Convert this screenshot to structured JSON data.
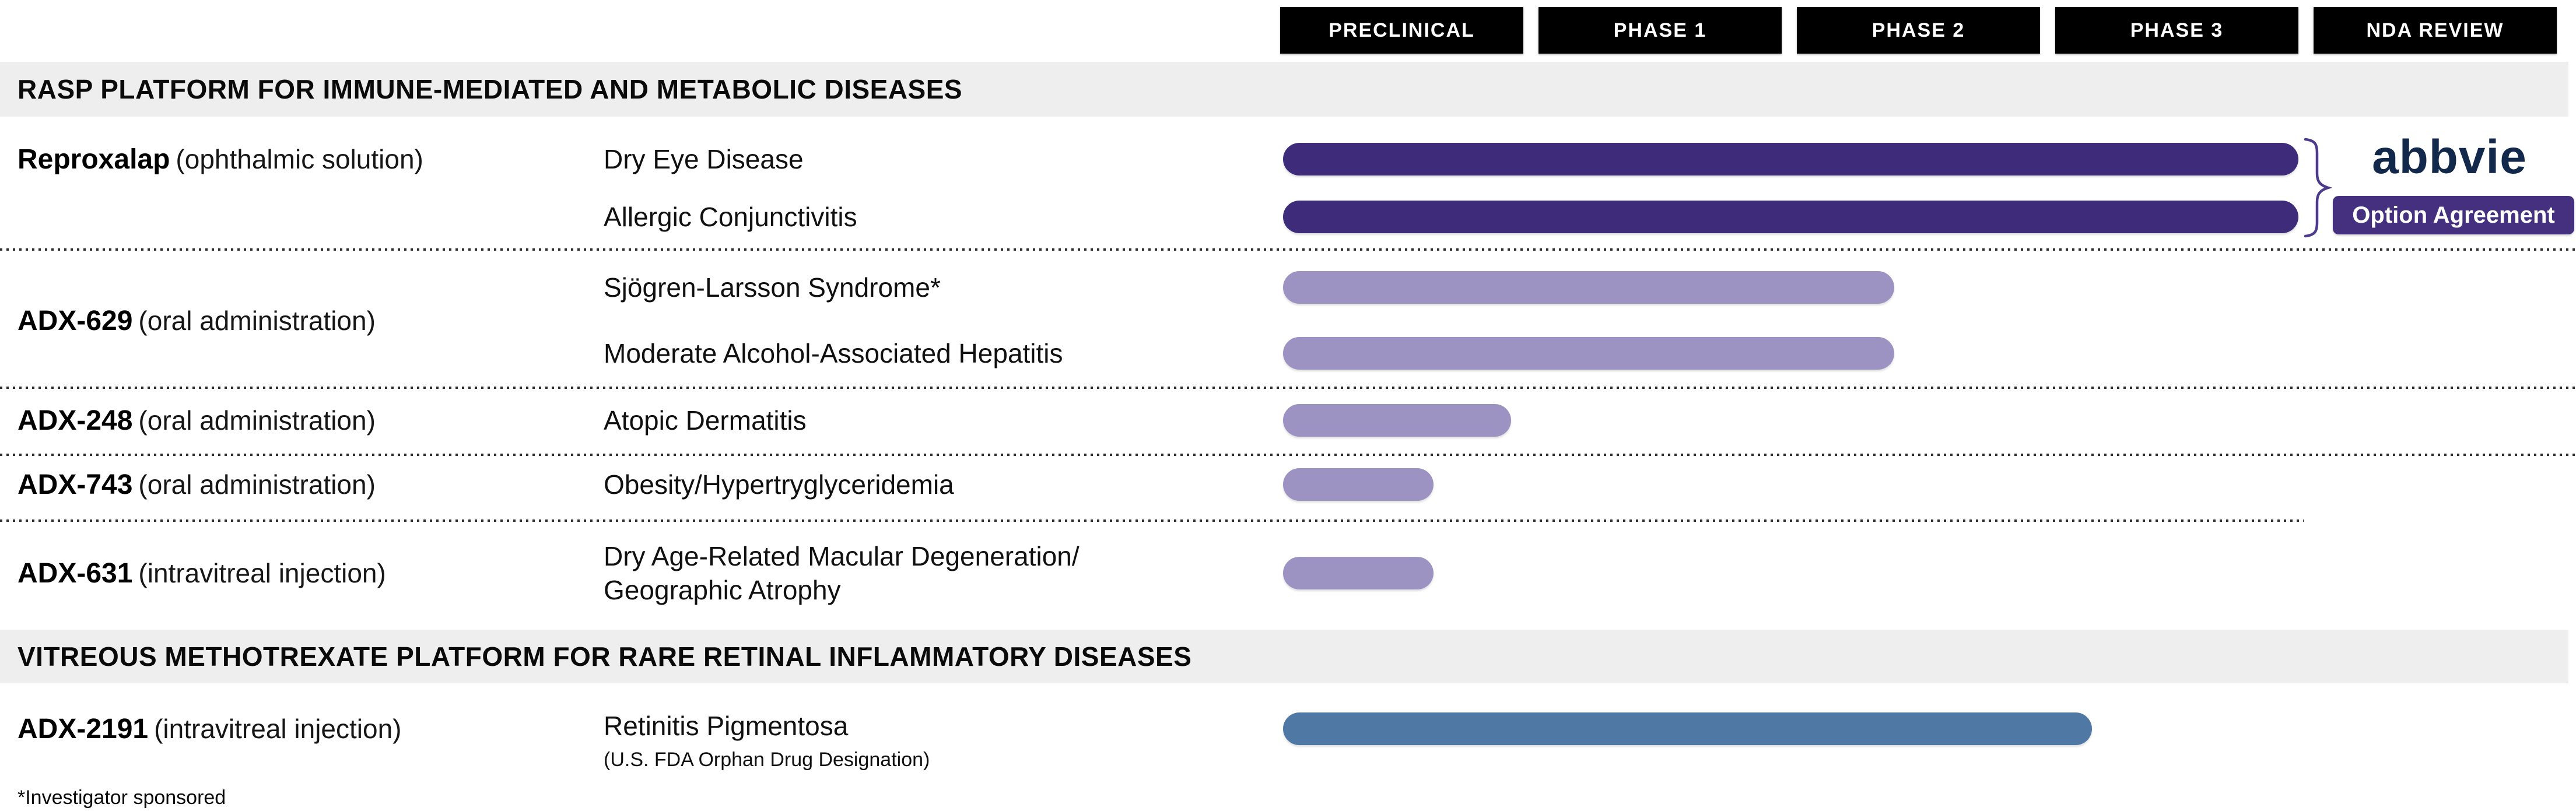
{
  "header": {
    "phases": [
      "PRECLINICAL",
      "PHASE 1",
      "PHASE 2",
      "PHASE 3",
      "NDA REVIEW"
    ]
  },
  "sections": {
    "rasp": {
      "title": "RASP PLATFORM FOR IMMUNE-MEDIATED AND METABOLIC DISEASES"
    },
    "vitreous": {
      "title": "VITREOUS METHOTREXATE PLATFORM FOR RARE RETINAL INFLAMMATORY DISEASES"
    }
  },
  "programs": {
    "reproxalap": {
      "name": "Reproxalap",
      "route": "(ophthalmic solution)"
    },
    "adx629": {
      "name": "ADX-629",
      "route": "(oral administration)"
    },
    "adx248": {
      "name": "ADX-248",
      "route": "(oral administration)"
    },
    "adx743": {
      "name": "ADX-743",
      "route": "(oral administration)"
    },
    "adx631": {
      "name": "ADX-631",
      "route": "(intravitreal injection)"
    },
    "adx2191": {
      "name": "ADX-2191",
      "route": "(intravitreal injection)"
    }
  },
  "rows": {
    "dry_eye": {
      "indication": "Dry Eye Disease"
    },
    "allergic": {
      "indication": "Allergic Conjunctivitis"
    },
    "sjogren": {
      "indication": "Sjögren-Larsson Syndrome*"
    },
    "hepatitis": {
      "indication": "Moderate Alcohol-Associated Hepatitis"
    },
    "atopic": {
      "indication": "Atopic Dermatitis"
    },
    "obesity": {
      "indication": "Obesity/Hypertryglyceridemia"
    },
    "amd": {
      "indication": "Dry Age-Related Macular Degeneration/\nGeographic Atrophy"
    },
    "retinitis": {
      "indication": "Retinitis Pigmentosa",
      "designation": "(U.S. FDA Orphan Drug Designation)"
    }
  },
  "partner": {
    "logo_text": "abbvie",
    "logo_color": "#12294B",
    "badge_label": "Option Agreement",
    "badge_color": "#45307F"
  },
  "footnote": "*Investigator sponsored",
  "colors": {
    "reproxalap_bar": "#3E2C7B",
    "adx_bar": "#9C93C3",
    "methotrexate_bar": "#4F78A5",
    "section_band": "#EEEEEE",
    "phase_box": "#000000"
  },
  "chart_data": {
    "type": "bar",
    "orientation": "horizontal",
    "x_axis": {
      "categories": [
        "PRECLINICAL",
        "PHASE 1",
        "PHASE 2",
        "PHASE 3",
        "NDA REVIEW"
      ],
      "range_phase_units": [
        0,
        5
      ]
    },
    "legend": "none",
    "grid": "off",
    "bars": [
      {
        "program": "Reproxalap",
        "route": "ophthalmic solution",
        "indication": "Dry Eye Disease",
        "progress_phase_units": 4.0,
        "stage": "Phase 3 completed",
        "color": "#3E2C7B",
        "partner_note": "abbvie Option Agreement"
      },
      {
        "program": "Reproxalap",
        "route": "ophthalmic solution",
        "indication": "Allergic Conjunctivitis",
        "progress_phase_units": 4.0,
        "stage": "Phase 3 completed",
        "color": "#3E2C7B",
        "partner_note": "abbvie Option Agreement"
      },
      {
        "program": "ADX-629",
        "route": "oral administration",
        "indication": "Sjögren-Larsson Syndrome*",
        "progress_phase_units": 2.4,
        "stage": "Phase 2",
        "color": "#9C93C3"
      },
      {
        "program": "ADX-629",
        "route": "oral administration",
        "indication": "Moderate Alcohol-Associated Hepatitis",
        "progress_phase_units": 2.4,
        "stage": "Phase 2",
        "color": "#9C93C3"
      },
      {
        "program": "ADX-248",
        "route": "oral administration",
        "indication": "Atopic Dermatitis",
        "progress_phase_units": 0.95,
        "stage": "Preclinical",
        "color": "#9C93C3"
      },
      {
        "program": "ADX-743",
        "route": "oral administration",
        "indication": "Obesity/Hypertryglyceridemia",
        "progress_phase_units": 0.63,
        "stage": "Preclinical",
        "color": "#9C93C3"
      },
      {
        "program": "ADX-631",
        "route": "intravitreal injection",
        "indication": "Dry Age-Related Macular Degeneration/Geographic Atrophy",
        "progress_phase_units": 0.63,
        "stage": "Preclinical",
        "color": "#9C93C3"
      },
      {
        "program": "ADX-2191",
        "route": "intravitreal injection",
        "indication": "Retinitis Pigmentosa (U.S. FDA Orphan Drug Designation)",
        "progress_phase_units": 3.15,
        "stage": "Phase 3",
        "color": "#4F78A5"
      }
    ]
  }
}
